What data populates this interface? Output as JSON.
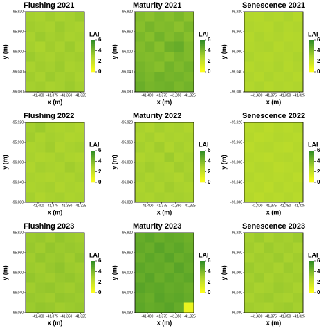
{
  "chart_data": [
    {
      "type": "heatmap",
      "title": "Flushing 2021",
      "x_label": "x (m)",
      "y_label": "y (m)",
      "xlim": [
        -41422,
        -41318
      ],
      "ylim": [
        -96080,
        -95920
      ],
      "xticks": [
        {
          "value": -41400,
          "label": "-41,400"
        },
        {
          "value": -41375,
          "label": "-41,375"
        },
        {
          "value": -41350,
          "label": "-41,350"
        },
        {
          "value": -41325,
          "label": "-41,325"
        }
      ],
      "yticks": [
        {
          "value": -95920,
          "label": "-95,920"
        },
        {
          "value": -95960,
          "label": "-95,960"
        },
        {
          "value": -96000,
          "label": "-96,000"
        },
        {
          "value": -96040,
          "label": "-96,040"
        },
        {
          "value": -96080,
          "label": "-96,080"
        }
      ],
      "values": [
        [
          3.1,
          3.0,
          3.2,
          3.0,
          3.1,
          3.3
        ],
        [
          3.2,
          3.1,
          3.0,
          3.3,
          3.1,
          3.0
        ],
        [
          3.0,
          3.3,
          3.1,
          3.2,
          3.0,
          3.1
        ],
        [
          3.1,
          2.9,
          3.2,
          3.0,
          3.3,
          3.0
        ],
        [
          3.3,
          3.1,
          3.0,
          3.2,
          3.1,
          3.2
        ],
        [
          3.0,
          3.2,
          3.1,
          3.3,
          3.0,
          3.1
        ],
        [
          3.2,
          3.0,
          3.3,
          3.1,
          3.2,
          3.0
        ],
        [
          3.1,
          3.2,
          3.0,
          3.1,
          3.3,
          3.1
        ]
      ],
      "colorbar": {
        "label": "LAI",
        "lim": [
          0,
          6
        ],
        "ticks": [
          0,
          2,
          4,
          6
        ],
        "colors": [
          "#ffff1a",
          "#a9d22e",
          "#2b8a24"
        ]
      }
    },
    {
      "type": "heatmap",
      "title": "Maturity 2021",
      "x_label": "x (m)",
      "y_label": "y (m)",
      "xlim": [
        -41422,
        -41318
      ],
      "ylim": [
        -96080,
        -95920
      ],
      "xticks": [
        {
          "value": -41400,
          "label": "-41,400"
        },
        {
          "value": -41375,
          "label": "-41,375"
        },
        {
          "value": -41350,
          "label": "-41,350"
        },
        {
          "value": -41325,
          "label": "-41,325"
        }
      ],
      "yticks": [
        {
          "value": -95920,
          "label": "-95,920"
        },
        {
          "value": -95960,
          "label": "-95,960"
        },
        {
          "value": -96000,
          "label": "-96,000"
        },
        {
          "value": -96040,
          "label": "-96,040"
        },
        {
          "value": -96080,
          "label": "-96,080"
        }
      ],
      "values": [
        [
          3.9,
          3.7,
          4.0,
          3.8,
          4.1,
          3.7
        ],
        [
          3.8,
          4.2,
          3.9,
          4.0,
          3.7,
          4.1
        ],
        [
          4.1,
          3.8,
          4.3,
          3.9,
          4.2,
          3.8
        ],
        [
          3.9,
          4.2,
          3.8,
          4.4,
          4.6,
          4.0
        ],
        [
          4.0,
          3.9,
          4.1,
          3.8,
          4.2,
          4.0
        ],
        [
          4.2,
          4.0,
          3.8,
          4.3,
          4.0,
          4.3
        ],
        [
          4.3,
          4.1,
          4.4,
          4.2,
          4.3,
          4.1
        ],
        [
          4.5,
          4.2,
          4.3,
          4.4,
          4.1,
          4.3
        ]
      ],
      "colorbar": {
        "label": "LAI",
        "lim": [
          0,
          6
        ],
        "ticks": [
          0,
          2,
          4,
          6
        ],
        "colors": [
          "#ffff1a",
          "#a9d22e",
          "#2b8a24"
        ]
      }
    },
    {
      "type": "heatmap",
      "title": "Senescence 2021",
      "x_label": "x (m)",
      "y_label": "y (m)",
      "xlim": [
        -41422,
        -41318
      ],
      "ylim": [
        -96080,
        -95920
      ],
      "xticks": [
        {
          "value": -41400,
          "label": "-41,400"
        },
        {
          "value": -41375,
          "label": "-41,375"
        },
        {
          "value": -41350,
          "label": "-41,350"
        },
        {
          "value": -41325,
          "label": "-41,325"
        }
      ],
      "yticks": [
        {
          "value": -95920,
          "label": "-95,920"
        },
        {
          "value": -95960,
          "label": "-95,960"
        },
        {
          "value": -96000,
          "label": "-96,000"
        },
        {
          "value": -96040,
          "label": "-96,040"
        },
        {
          "value": -96080,
          "label": "-96,080"
        }
      ],
      "values": [
        [
          2.7,
          2.6,
          2.8,
          2.7,
          2.9,
          2.6
        ],
        [
          2.8,
          2.7,
          2.6,
          2.9,
          2.7,
          2.8
        ],
        [
          2.6,
          2.9,
          2.7,
          2.8,
          2.6,
          2.7
        ],
        [
          2.7,
          2.8,
          2.9,
          2.6,
          2.8,
          2.7
        ],
        [
          2.9,
          2.7,
          2.6,
          2.8,
          2.7,
          2.9
        ],
        [
          2.6,
          2.8,
          2.7,
          2.9,
          2.6,
          2.8
        ],
        [
          2.8,
          2.6,
          2.9,
          2.7,
          2.8,
          2.6
        ],
        [
          2.7,
          2.9,
          2.6,
          2.8,
          2.7,
          2.8
        ]
      ],
      "colorbar": {
        "label": "LAI",
        "lim": [
          0,
          6
        ],
        "ticks": [
          0,
          2,
          4,
          6
        ],
        "colors": [
          "#ffff1a",
          "#a9d22e",
          "#2b8a24"
        ]
      }
    },
    {
      "type": "heatmap",
      "title": "Flushing 2022",
      "x_label": "x (m)",
      "y_label": "y (m)",
      "xlim": [
        -41422,
        -41318
      ],
      "ylim": [
        -96080,
        -95920
      ],
      "xticks": [
        {
          "value": -41400,
          "label": "-41,400"
        },
        {
          "value": -41375,
          "label": "-41,375"
        },
        {
          "value": -41350,
          "label": "-41,350"
        },
        {
          "value": -41325,
          "label": "-41,325"
        }
      ],
      "yticks": [
        {
          "value": -95920,
          "label": "-95,920"
        },
        {
          "value": -95960,
          "label": "-95,960"
        },
        {
          "value": -96000,
          "label": "-96,000"
        },
        {
          "value": -96040,
          "label": "-96,040"
        },
        {
          "value": -96080,
          "label": "-96,080"
        }
      ],
      "values": [
        [
          3.1,
          3.3,
          3.0,
          2.9,
          3.0,
          2.8
        ],
        [
          3.2,
          2.9,
          3.1,
          3.0,
          2.8,
          2.9
        ],
        [
          2.9,
          3.0,
          3.2,
          2.8,
          3.0,
          3.1
        ],
        [
          3.0,
          2.8,
          2.9,
          3.1,
          2.9,
          2.8
        ],
        [
          2.8,
          3.1,
          3.0,
          2.9,
          3.2,
          3.0
        ],
        [
          3.0,
          2.9,
          2.8,
          3.0,
          2.9,
          3.1
        ],
        [
          2.9,
          3.0,
          3.1,
          2.8,
          3.0,
          2.9
        ],
        [
          3.1,
          2.8,
          3.0,
          3.1,
          2.9,
          3.0
        ]
      ],
      "colorbar": {
        "label": "LAI",
        "lim": [
          0,
          6
        ],
        "ticks": [
          0,
          2,
          4,
          6
        ],
        "colors": [
          "#ffff1a",
          "#a9d22e",
          "#2b8a24"
        ]
      }
    },
    {
      "type": "heatmap",
      "title": "Maturity 2022",
      "x_label": "x (m)",
      "y_label": "y (m)",
      "xlim": [
        -41422,
        -41318
      ],
      "ylim": [
        -96080,
        -95920
      ],
      "xticks": [
        {
          "value": -41400,
          "label": "-41,400"
        },
        {
          "value": -41375,
          "label": "-41,375"
        },
        {
          "value": -41350,
          "label": "-41,350"
        },
        {
          "value": -41325,
          "label": "-41,325"
        }
      ],
      "yticks": [
        {
          "value": -95920,
          "label": "-95,920"
        },
        {
          "value": -95960,
          "label": "-95,960"
        },
        {
          "value": -96000,
          "label": "-96,000"
        },
        {
          "value": -96040,
          "label": "-96,040"
        },
        {
          "value": -96080,
          "label": "-96,080"
        }
      ],
      "values": [
        [
          3.0,
          2.8,
          3.1,
          2.9,
          3.0,
          2.8
        ],
        [
          2.9,
          3.1,
          2.8,
          3.0,
          2.9,
          3.0
        ],
        [
          3.1,
          2.9,
          3.2,
          2.8,
          3.1,
          2.9
        ],
        [
          2.8,
          3.0,
          2.9,
          3.3,
          2.9,
          3.1
        ],
        [
          3.0,
          3.2,
          3.0,
          2.9,
          3.2,
          3.0
        ],
        [
          3.1,
          2.9,
          3.1,
          3.0,
          2.8,
          3.1
        ],
        [
          2.9,
          3.1,
          2.9,
          3.2,
          3.0,
          2.9
        ],
        [
          3.0,
          2.9,
          3.1,
          3.0,
          3.1,
          3.0
        ]
      ],
      "colorbar": {
        "label": "LAI",
        "lim": [
          0,
          6
        ],
        "ticks": [
          0,
          2,
          4,
          6
        ],
        "colors": [
          "#ffff1a",
          "#a9d22e",
          "#2b8a24"
        ]
      }
    },
    {
      "type": "heatmap",
      "title": "Senescence 2022",
      "x_label": "x (m)",
      "y_label": "y (m)",
      "xlim": [
        -41422,
        -41318
      ],
      "ylim": [
        -96080,
        -95920
      ],
      "xticks": [
        {
          "value": -41400,
          "label": "-41,400"
        },
        {
          "value": -41375,
          "label": "-41,375"
        },
        {
          "value": -41350,
          "label": "-41,350"
        },
        {
          "value": -41325,
          "label": "-41,325"
        }
      ],
      "yticks": [
        {
          "value": -95920,
          "label": "-95,920"
        },
        {
          "value": -95960,
          "label": "-95,960"
        },
        {
          "value": -96000,
          "label": "-96,000"
        },
        {
          "value": -96040,
          "label": "-96,040"
        },
        {
          "value": -96080,
          "label": "-96,080"
        }
      ],
      "values": [
        [
          2.5,
          2.6,
          2.4,
          2.6,
          2.5,
          2.7
        ],
        [
          2.6,
          2.4,
          2.5,
          2.7,
          2.6,
          2.5
        ],
        [
          2.4,
          2.6,
          2.7,
          2.5,
          2.4,
          2.6
        ],
        [
          2.6,
          2.5,
          2.4,
          2.6,
          2.7,
          2.5
        ],
        [
          2.5,
          2.7,
          2.6,
          2.4,
          2.5,
          2.6
        ],
        [
          2.7,
          2.5,
          2.6,
          2.5,
          2.6,
          2.4
        ],
        [
          2.5,
          2.6,
          2.4,
          2.7,
          2.5,
          2.6
        ],
        [
          2.6,
          2.4,
          2.6,
          2.5,
          2.7,
          2.5
        ]
      ],
      "colorbar": {
        "label": "LAI",
        "lim": [
          0,
          6
        ],
        "ticks": [
          0,
          2,
          4,
          6
        ],
        "colors": [
          "#ffff1a",
          "#a9d22e",
          "#2b8a24"
        ]
      }
    },
    {
      "type": "heatmap",
      "title": "Flushing 2023",
      "x_label": "x (m)",
      "y_label": "y (m)",
      "xlim": [
        -41422,
        -41318
      ],
      "ylim": [
        -96080,
        -95920
      ],
      "xticks": [
        {
          "value": -41400,
          "label": "-41,400"
        },
        {
          "value": -41375,
          "label": "-41,375"
        },
        {
          "value": -41350,
          "label": "-41,350"
        },
        {
          "value": -41325,
          "label": "-41,325"
        }
      ],
      "yticks": [
        {
          "value": -95920,
          "label": "-95,920"
        },
        {
          "value": -95960,
          "label": "-95,960"
        },
        {
          "value": -96000,
          "label": "-96,000"
        },
        {
          "value": -96040,
          "label": "-96,040"
        },
        {
          "value": -96080,
          "label": "-96,080"
        }
      ],
      "values": [
        [
          3.3,
          3.4,
          3.2,
          3.5,
          3.3,
          3.2
        ],
        [
          3.4,
          3.2,
          3.5,
          3.3,
          3.4,
          3.3
        ],
        [
          3.2,
          3.5,
          3.3,
          3.4,
          3.2,
          3.5
        ],
        [
          3.3,
          3.2,
          3.4,
          3.6,
          3.3,
          3.2
        ],
        [
          3.5,
          3.3,
          3.2,
          3.4,
          3.5,
          3.3
        ],
        [
          3.2,
          3.4,
          3.5,
          3.3,
          3.2,
          3.4
        ],
        [
          3.4,
          3.3,
          3.2,
          3.5,
          3.4,
          3.3
        ],
        [
          3.3,
          3.5,
          3.4,
          3.2,
          3.3,
          3.4
        ]
      ],
      "colorbar": {
        "label": "LAI",
        "lim": [
          0,
          6
        ],
        "ticks": [
          0,
          2,
          4,
          6
        ],
        "colors": [
          "#ffff1a",
          "#a9d22e",
          "#2b8a24"
        ]
      }
    },
    {
      "type": "heatmap",
      "title": "Maturity 2023",
      "x_label": "x (m)",
      "y_label": "y (m)",
      "xlim": [
        -41422,
        -41318
      ],
      "ylim": [
        -96080,
        -95920
      ],
      "xticks": [
        {
          "value": -41400,
          "label": "-41,400"
        },
        {
          "value": -41375,
          "label": "-41,375"
        },
        {
          "value": -41350,
          "label": "-41,350"
        },
        {
          "value": -41325,
          "label": "-41,325"
        }
      ],
      "yticks": [
        {
          "value": -95920,
          "label": "-95,920"
        },
        {
          "value": -95960,
          "label": "-95,960"
        },
        {
          "value": -96000,
          "label": "-96,000"
        },
        {
          "value": -96040,
          "label": "-96,040"
        },
        {
          "value": -96080,
          "label": "-96,080"
        }
      ],
      "values": [
        [
          4.6,
          4.8,
          4.5,
          4.7,
          4.6,
          4.4
        ],
        [
          4.7,
          4.5,
          4.9,
          4.6,
          4.8,
          4.5
        ],
        [
          4.5,
          4.8,
          4.6,
          4.9,
          4.5,
          4.7
        ],
        [
          4.8,
          4.6,
          4.7,
          4.5,
          4.9,
          4.6
        ],
        [
          4.6,
          4.9,
          4.5,
          4.8,
          4.6,
          4.8
        ],
        [
          4.9,
          4.7,
          4.8,
          4.6,
          4.7,
          4.5
        ],
        [
          4.7,
          4.5,
          4.9,
          4.7,
          4.8,
          4.6
        ],
        [
          4.8,
          4.6,
          4.7,
          4.9,
          4.6,
          0.8
        ]
      ],
      "colorbar": {
        "label": "LAI",
        "lim": [
          0,
          6
        ],
        "ticks": [
          0,
          2,
          4,
          6
        ],
        "colors": [
          "#ffff1a",
          "#a9d22e",
          "#2b8a24"
        ]
      }
    },
    {
      "type": "heatmap",
      "title": "Senescence 2023",
      "x_label": "x (m)",
      "y_label": "y (m)",
      "xlim": [
        -41422,
        -41318
      ],
      "ylim": [
        -96080,
        -95920
      ],
      "xticks": [
        {
          "value": -41400,
          "label": "-41,400"
        },
        {
          "value": -41375,
          "label": "-41,375"
        },
        {
          "value": -41350,
          "label": "-41,350"
        },
        {
          "value": -41325,
          "label": "-41,325"
        }
      ],
      "yticks": [
        {
          "value": -95920,
          "label": "-95,920"
        },
        {
          "value": -95960,
          "label": "-95,960"
        },
        {
          "value": -96000,
          "label": "-96,000"
        },
        {
          "value": -96040,
          "label": "-96,040"
        },
        {
          "value": -96080,
          "label": "-96,080"
        }
      ],
      "values": [
        [
          3.1,
          3.3,
          3.0,
          3.2,
          3.1,
          3.3
        ],
        [
          3.2,
          3.0,
          3.3,
          3.1,
          3.2,
          3.0
        ],
        [
          3.0,
          3.2,
          3.1,
          3.3,
          3.0,
          3.2
        ],
        [
          3.3,
          3.1,
          3.2,
          3.0,
          3.3,
          3.1
        ],
        [
          3.1,
          3.3,
          3.0,
          3.2,
          3.1,
          3.2
        ],
        [
          3.2,
          3.0,
          3.1,
          3.3,
          3.2,
          3.0
        ],
        [
          3.0,
          3.2,
          3.3,
          3.1,
          3.0,
          3.2
        ],
        [
          3.2,
          3.1,
          3.0,
          3.2,
          3.3,
          3.1
        ]
      ],
      "colorbar": {
        "label": "LAI",
        "lim": [
          0,
          6
        ],
        "ticks": [
          0,
          2,
          4,
          6
        ],
        "colors": [
          "#ffff1a",
          "#a9d22e",
          "#2b8a24"
        ]
      }
    }
  ]
}
